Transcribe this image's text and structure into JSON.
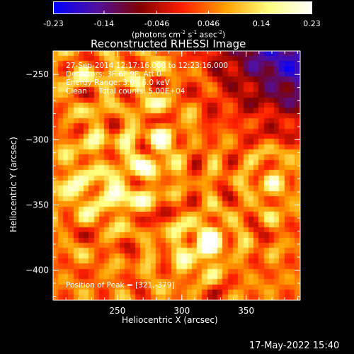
{
  "colorbar": {
    "tick_labels": [
      "-0.23",
      "-0.14",
      "-0.046",
      "0.046",
      "0.14",
      "0.23"
    ],
    "tick_values": [
      -0.23,
      -0.14,
      -0.046,
      0.046,
      0.14,
      0.23
    ],
    "range": [
      -0.23,
      0.23
    ],
    "unit_label": "(photons cm",
    "unit_sup1": "-2",
    "unit_mid": " s",
    "unit_sup2": "-1",
    "unit_mid2": " asec",
    "unit_sup3": "-2",
    "unit_end": ")"
  },
  "chart_data": {
    "type": "heatmap",
    "title": "Reconstructed RHESSI Image",
    "xlabel": "Heliocentric X (arcsec)",
    "ylabel": "Heliocentric Y (arcsec)",
    "xlim": [
      200,
      392
    ],
    "ylim": [
      -423,
      -232
    ],
    "x_ticks": [
      250,
      300,
      350
    ],
    "y_ticks": [
      -250,
      -300,
      -350,
      -400
    ],
    "x_tick_labels": [
      "250",
      "300",
      "350"
    ],
    "y_tick_labels": [
      "−250",
      "−300",
      "−350",
      "−400"
    ],
    "color_scale": [
      "#0000ff",
      "#5010a0",
      "#800000",
      "#ff2000",
      "#ffa000",
      "#ffff80",
      "#ffffff"
    ],
    "peak": [
      321,
      -379
    ],
    "sources": [
      {
        "x": 248,
        "y": -344,
        "amp": 0.2
      },
      {
        "x": 321,
        "y": -379,
        "amp": 0.23
      },
      {
        "x": 212,
        "y": -336,
        "amp": 0.17
      },
      {
        "x": 274,
        "y": -322,
        "amp": 0.15
      },
      {
        "x": 283,
        "y": -296,
        "amp": 0.13
      },
      {
        "x": 236,
        "y": -303,
        "amp": 0.12
      },
      {
        "x": 372,
        "y": -334,
        "amp": 0.12
      },
      {
        "x": 265,
        "y": -255,
        "amp": 0.11
      },
      {
        "x": 300,
        "y": -390,
        "amp": 0.1
      },
      {
        "x": 225,
        "y": -252,
        "amp": 0.1
      }
    ],
    "annotations": [
      "27-Sep-2014 12:17:16.000 to 12:23:16.000",
      "Detectors: 3F 6F 9F, Att 0",
      "Energy Range: 3.0 - 6.0 keV",
      "Clean     Total counts: 5.00E+04"
    ],
    "peak_label": "Position of Peak = [321,-379]"
  },
  "footer": {
    "timestamp": "17-May-2022 15:40"
  }
}
